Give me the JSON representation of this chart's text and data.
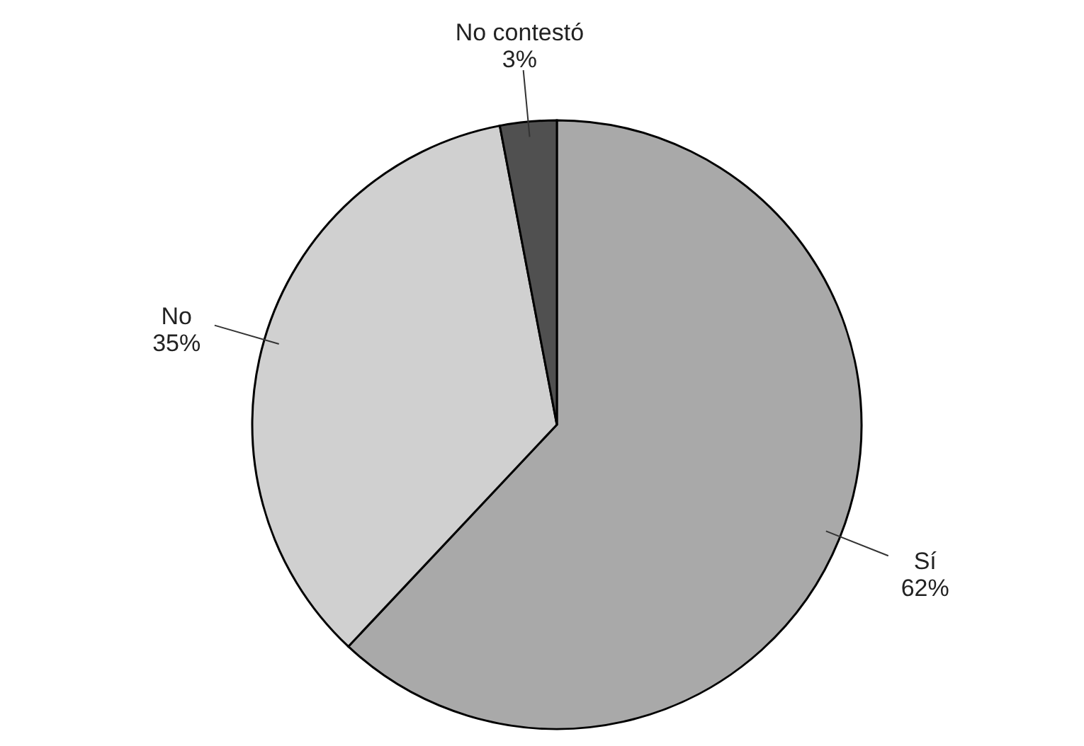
{
  "chart_data": {
    "type": "pie",
    "categories": [
      "Sí",
      "No",
      "No contestó"
    ],
    "values": [
      62,
      35,
      3
    ],
    "value_labels": [
      "62%",
      "35%",
      "3%"
    ],
    "colors": [
      "#a9a9a9",
      "#d0d0d0",
      "#505050"
    ]
  }
}
